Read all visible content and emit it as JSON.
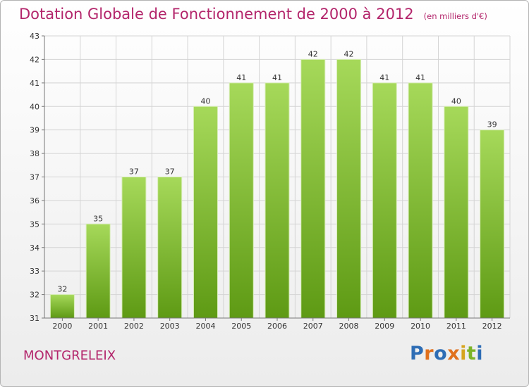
{
  "title": "Dotation Globale de Fonctionnement de 2000 à 2012",
  "unit": "(en milliers d'€)",
  "commune": "MONTGRELEIX",
  "brand": {
    "letters": [
      "P",
      "r",
      "o",
      "x",
      "i",
      "t",
      "i"
    ],
    "colors": [
      "#2e6db5",
      "#e0701d",
      "#2e6db5",
      "#e0701d",
      "#d6a41e",
      "#7cb428",
      "#2e6db5"
    ]
  },
  "colors": {
    "title": "#b3256b",
    "bar_light": "#a6d95a",
    "bar_dark": "#5e9a14",
    "grid": "#d4d4d4"
  },
  "chart_data": {
    "type": "bar",
    "categories": [
      "2000",
      "2001",
      "2002",
      "2003",
      "2004",
      "2005",
      "2006",
      "2007",
      "2008",
      "2009",
      "2010",
      "2011",
      "2012"
    ],
    "values": [
      32,
      35,
      37,
      37,
      40,
      41,
      41,
      42,
      42,
      41,
      41,
      40,
      39
    ],
    "ylim": [
      31,
      43
    ],
    "yticks": [
      31,
      32,
      33,
      34,
      35,
      36,
      37,
      38,
      39,
      40,
      41,
      42,
      43
    ],
    "grid": true,
    "title": "Dotation Globale de Fonctionnement de 2000 à 2012",
    "xlabel": "",
    "ylabel": ""
  }
}
